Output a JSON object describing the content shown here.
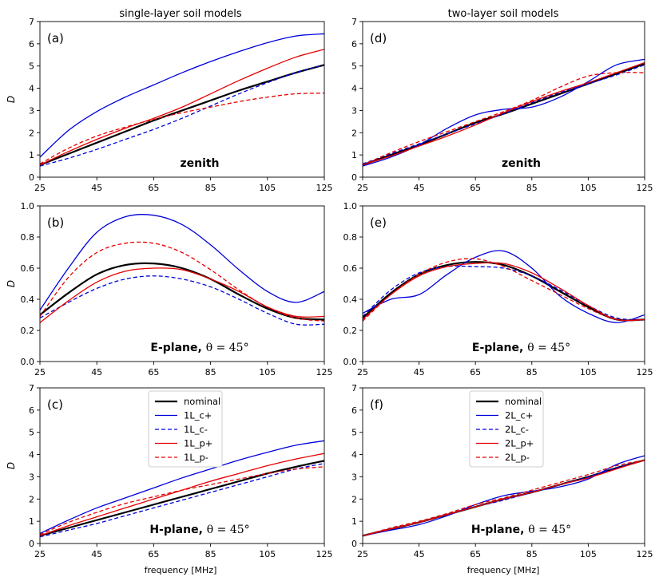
{
  "chart_data": {
    "type": "line",
    "column_titles": [
      "single-layer soil models",
      "two-layer soil models"
    ],
    "xlabel": "frequency [MHz]",
    "ylabel": "D",
    "x": [
      25,
      35,
      45,
      55,
      65,
      75,
      85,
      95,
      105,
      115,
      125
    ],
    "xticks": [
      "25",
      "45",
      "65",
      "85",
      "105",
      "125"
    ],
    "panels": [
      {
        "letter": "(a)",
        "note_bold": "zenith",
        "note_math": "",
        "ylim": [
          0,
          7
        ],
        "yticks": [
          "0",
          "1",
          "2",
          "3",
          "4",
          "5",
          "6",
          "7"
        ],
        "legend": null,
        "series": [
          {
            "name": "nominal",
            "values": [
              0.55,
              1.05,
              1.55,
              2.05,
              2.55,
              3.0,
              3.45,
              3.9,
              4.3,
              4.7,
              5.05
            ]
          },
          {
            "name": "1L_c+",
            "values": [
              0.9,
              2.1,
              2.95,
              3.6,
              4.15,
              4.7,
              5.2,
              5.65,
              6.05,
              6.35,
              6.45
            ]
          },
          {
            "name": "1L_c-",
            "values": [
              0.5,
              0.85,
              1.25,
              1.7,
              2.15,
              2.65,
              3.2,
              3.75,
              4.25,
              4.7,
              5.05
            ]
          },
          {
            "name": "1L_p+",
            "values": [
              0.55,
              1.15,
              1.7,
              2.2,
              2.65,
              3.15,
              3.75,
              4.35,
              4.9,
              5.4,
              5.75
            ]
          },
          {
            "name": "1L_p-",
            "values": [
              0.6,
              1.3,
              1.85,
              2.25,
              2.6,
              2.9,
              3.15,
              3.4,
              3.6,
              3.75,
              3.78
            ]
          }
        ]
      },
      {
        "letter": "(b)",
        "note_bold": "E-plane, ",
        "note_math": "θ = 45°",
        "ylim": [
          0,
          1
        ],
        "yticks": [
          "0.0",
          "0.2",
          "0.4",
          "0.6",
          "0.8",
          "1.0"
        ],
        "legend": null,
        "series": [
          {
            "name": "nominal",
            "values": [
              0.3,
              0.44,
              0.56,
              0.62,
              0.63,
              0.6,
              0.53,
              0.43,
              0.34,
              0.28,
              0.27
            ]
          },
          {
            "name": "1L_c+",
            "values": [
              0.33,
              0.6,
              0.83,
              0.93,
              0.94,
              0.88,
              0.75,
              0.59,
              0.45,
              0.38,
              0.45
            ]
          },
          {
            "name": "1L_c-",
            "values": [
              0.28,
              0.38,
              0.47,
              0.53,
              0.55,
              0.53,
              0.48,
              0.4,
              0.31,
              0.24,
              0.24
            ]
          },
          {
            "name": "1L_p+",
            "values": [
              0.25,
              0.39,
              0.51,
              0.58,
              0.6,
              0.59,
              0.53,
              0.45,
              0.35,
              0.29,
              0.29
            ]
          },
          {
            "name": "1L_p-",
            "values": [
              0.29,
              0.54,
              0.7,
              0.76,
              0.76,
              0.7,
              0.59,
              0.46,
              0.35,
              0.28,
              0.26
            ]
          }
        ]
      },
      {
        "letter": "(c)",
        "note_bold": "H-plane, ",
        "note_math": "θ = 45°",
        "ylim": [
          0,
          7
        ],
        "yticks": [
          "0",
          "1",
          "2",
          "3",
          "4",
          "5",
          "6",
          "7"
        ],
        "legend": {
          "position": "upper-center",
          "entries": [
            "nominal",
            "1L_c+",
            "1L_c-",
            "1L_p+",
            "1L_p-"
          ]
        },
        "series": [
          {
            "name": "nominal",
            "values": [
              0.35,
              0.7,
              1.05,
              1.4,
              1.75,
              2.1,
              2.45,
              2.8,
              3.15,
              3.45,
              3.72
            ]
          },
          {
            "name": "1L_c+",
            "values": [
              0.45,
              1.05,
              1.6,
              2.05,
              2.5,
              2.95,
              3.35,
              3.75,
              4.1,
              4.42,
              4.62
            ]
          },
          {
            "name": "1L_c-",
            "values": [
              0.3,
              0.6,
              0.9,
              1.25,
              1.6,
              1.95,
              2.3,
              2.65,
              3.0,
              3.35,
              3.6
            ]
          },
          {
            "name": "1L_p+",
            "values": [
              0.35,
              0.8,
              1.2,
              1.6,
              2.0,
              2.4,
              2.8,
              3.15,
              3.5,
              3.8,
              4.05
            ]
          },
          {
            "name": "1L_p-",
            "values": [
              0.4,
              0.95,
              1.4,
              1.8,
              2.1,
              2.4,
              2.65,
              2.9,
              3.15,
              3.35,
              3.45
            ]
          }
        ]
      },
      {
        "letter": "(d)",
        "note_bold": "zenith",
        "note_math": "",
        "ylim": [
          0,
          7
        ],
        "yticks": [
          "0",
          "1",
          "2",
          "3",
          "4",
          "5",
          "6",
          "7"
        ],
        "legend": null,
        "series": [
          {
            "name": "nominal",
            "values": [
              0.55,
              1.0,
              1.45,
              1.95,
              2.45,
              2.85,
              3.3,
              3.75,
              4.2,
              4.65,
              5.1
            ]
          },
          {
            "name": "2L_c+",
            "values": [
              0.5,
              0.9,
              1.45,
              2.2,
              2.8,
              3.05,
              3.15,
              3.6,
              4.3,
              5.05,
              5.3
            ]
          },
          {
            "name": "2L_c-",
            "values": [
              0.6,
              1.05,
              1.5,
              1.95,
              2.4,
              2.85,
              3.35,
              3.8,
              4.2,
              4.6,
              5.05
            ]
          },
          {
            "name": "2L_p+",
            "values": [
              0.55,
              0.95,
              1.4,
              1.85,
              2.35,
              2.9,
              3.4,
              3.85,
              4.25,
              4.7,
              5.15
            ]
          },
          {
            "name": "2L_p-",
            "values": [
              0.55,
              1.1,
              1.6,
              2.05,
              2.5,
              2.95,
              3.45,
              4.05,
              4.55,
              4.7,
              4.7
            ]
          }
        ]
      },
      {
        "letter": "(e)",
        "note_bold": "E-plane, ",
        "note_math": "θ = 45°",
        "ylim": [
          0,
          1
        ],
        "yticks": [
          "0.0",
          "0.2",
          "0.4",
          "0.6",
          "0.8",
          "1.0"
        ],
        "legend": null,
        "series": [
          {
            "name": "nominal",
            "values": [
              0.28,
              0.44,
              0.56,
              0.62,
              0.64,
              0.62,
              0.55,
              0.45,
              0.35,
              0.27,
              0.27
            ]
          },
          {
            "name": "2L_c+",
            "values": [
              0.31,
              0.4,
              0.43,
              0.56,
              0.67,
              0.71,
              0.6,
              0.42,
              0.31,
              0.25,
              0.3
            ]
          },
          {
            "name": "2L_c-",
            "values": [
              0.29,
              0.46,
              0.57,
              0.61,
              0.61,
              0.6,
              0.55,
              0.46,
              0.36,
              0.28,
              0.27
            ]
          },
          {
            "name": "2L_p+",
            "values": [
              0.27,
              0.43,
              0.55,
              0.61,
              0.63,
              0.63,
              0.57,
              0.47,
              0.36,
              0.27,
              0.27
            ]
          },
          {
            "name": "2L_p-",
            "values": [
              0.26,
              0.43,
              0.56,
              0.64,
              0.66,
              0.61,
              0.52,
              0.43,
              0.34,
              0.27,
              0.27
            ]
          }
        ]
      },
      {
        "letter": "(f)",
        "note_bold": "H-plane, ",
        "note_math": "θ = 45°",
        "ylim": [
          0,
          7
        ],
        "yticks": [
          "0",
          "1",
          "2",
          "3",
          "4",
          "5",
          "6",
          "7"
        ],
        "legend": {
          "position": "upper-center",
          "entries": [
            "nominal",
            "2L_c+",
            "2L_c-",
            "2L_p+",
            "2L_p-"
          ]
        },
        "series": [
          {
            "name": "nominal",
            "values": [
              0.35,
              0.65,
              0.95,
              1.3,
              1.65,
              2.0,
              2.3,
              2.65,
              3.0,
              3.4,
              3.75
            ]
          },
          {
            "name": "2L_c+",
            "values": [
              0.35,
              0.6,
              0.85,
              1.25,
              1.75,
              2.15,
              2.35,
              2.55,
              2.9,
              3.55,
              3.95
            ]
          },
          {
            "name": "2L_c-",
            "values": [
              0.35,
              0.65,
              0.95,
              1.3,
              1.65,
              1.95,
              2.3,
              2.65,
              3.0,
              3.4,
              3.75
            ]
          },
          {
            "name": "2L_p+",
            "values": [
              0.35,
              0.65,
              0.95,
              1.3,
              1.65,
              2.0,
              2.3,
              2.65,
              2.95,
              3.35,
              3.75
            ]
          },
          {
            "name": "2L_p-",
            "values": [
              0.35,
              0.7,
              1.0,
              1.35,
              1.75,
              2.05,
              2.4,
              2.75,
              3.1,
              3.5,
              3.75
            ]
          }
        ]
      }
    ],
    "styles": [
      {
        "color": "#000000",
        "dash": "solid",
        "width": 2.2
      },
      {
        "color": "#0000dd",
        "dash": "solid",
        "width": 1.3
      },
      {
        "color": "#0000dd",
        "dash": "dashed",
        "width": 1.3
      },
      {
        "color": "#e60000",
        "dash": "solid",
        "width": 1.3
      },
      {
        "color": "#e60000",
        "dash": "dashed",
        "width": 1.3
      }
    ]
  }
}
